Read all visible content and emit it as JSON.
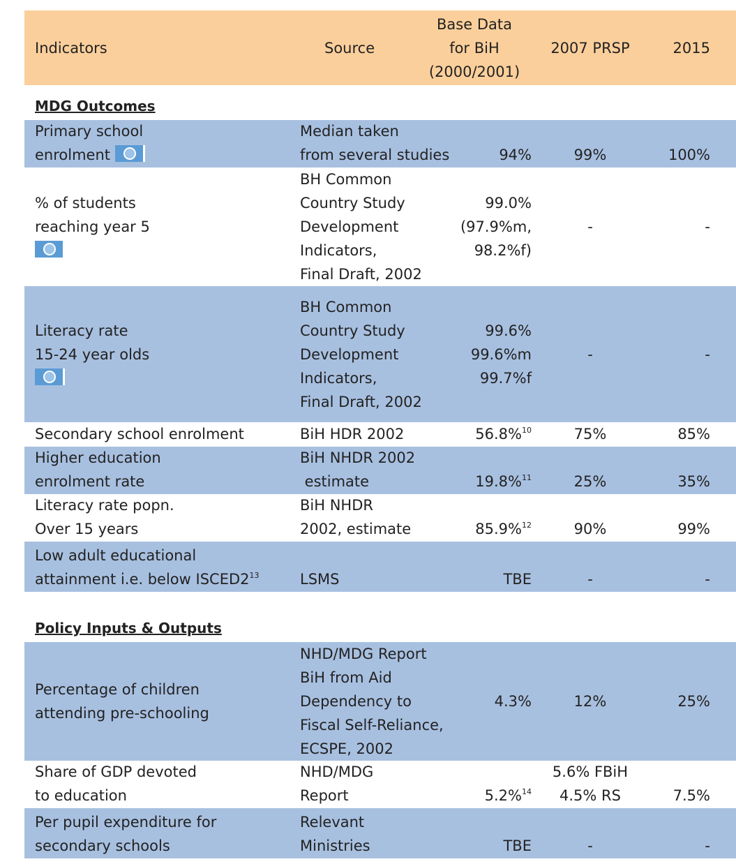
{
  "header": {
    "indicators": "Indicators",
    "source": "Source",
    "base_data": "Base Data\nfor BiH\n(2000/2001)",
    "prsp_2007": "2007 PRSP",
    "target_2015": "2015"
  },
  "sections": [
    {
      "title": "MDG Outcomes",
      "rows": [
        {
          "indicator": "Primary school\nenrolment",
          "source": "Median taken\nfrom several studies",
          "base": "94%",
          "prsp": "99%",
          "target": "100%"
        },
        {
          "indicator": "% of students\nreaching year 5",
          "source": "BH Common\nCountry Study\nDevelopment\nIndicators,\nFinal Draft, 2002",
          "base": "99.0%\n(97.9%m,\n98.2%f)",
          "prsp": "-",
          "target": "-"
        },
        {
          "indicator": "Literacy rate\n15-24 year olds",
          "source": "BH Common\nCountry Study\nDevelopment\nIndicators,\nFinal Draft, 2002",
          "base": "99.6%\n99.6%m\n99.7%f",
          "prsp": "-",
          "target": "-"
        },
        {
          "indicator": "Secondary school enrolment",
          "source": "BiH HDR 2002",
          "base": "56.8%",
          "base_note": "10",
          "prsp": "75%",
          "target": "85%"
        },
        {
          "indicator": "Higher education\nenrolment rate",
          "source": "BiH NHDR 2002\n estimate",
          "base": "19.8%",
          "base_note": "11",
          "prsp": "25%",
          "target": "35%"
        },
        {
          "indicator": "Literacy rate popn.\nOver 15 years",
          "source": "BiH NHDR\n2002, estimate",
          "base": "85.9%",
          "base_note": "12",
          "prsp": "90%",
          "target": "99%"
        },
        {
          "indicator": "Low adult educational\nattainment i.e. below ISCED2",
          "indicator_note": "13",
          "source": "LSMS",
          "base": "TBE",
          "prsp": "-",
          "target": "-"
        }
      ]
    },
    {
      "title": "Policy Inputs & Outputs",
      "rows": [
        {
          "indicator": "Percentage of children\nattending pre-schooling",
          "source": "NHD/MDG Report\nBiH from Aid\nDependency to\nFiscal Self-Reliance,\nECSPE, 2002",
          "base": "4.3%",
          "prsp": "12%",
          "target": "25%"
        },
        {
          "indicator": "Share of GDP devoted\nto education",
          "source": "NHD/MDG\nReport",
          "base": "5.2%",
          "base_note": "14",
          "prsp": "5.6% FBiH\n4.5% RS",
          "target": "7.5%"
        },
        {
          "indicator": "Per pupil expenditure for\nsecondary schools",
          "source": "Relevant\nMinistries",
          "base": "TBE",
          "prsp": "-",
          "target": "-"
        }
      ]
    }
  ]
}
